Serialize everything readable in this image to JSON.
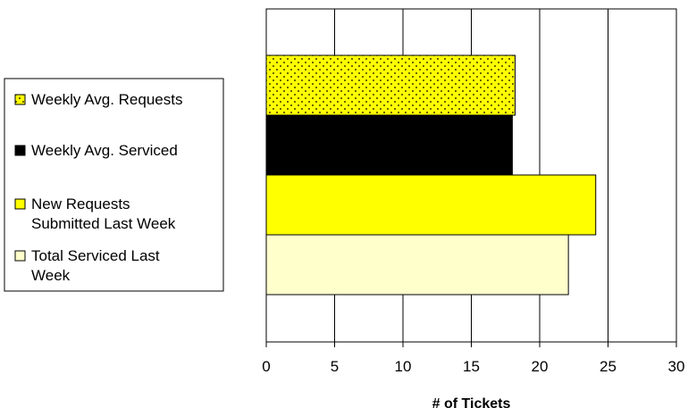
{
  "chart_data": {
    "type": "bar",
    "orientation": "horizontal",
    "xlabel": "# of Tickets",
    "ylabel": "",
    "xlim": [
      0,
      30
    ],
    "ticks": [
      0,
      5,
      10,
      15,
      20,
      25,
      30
    ],
    "grid": "vertical",
    "legend_position": "left",
    "series": [
      {
        "name": "Weekly Avg. Requests",
        "legend_lines": [
          "Weekly Avg. Requests"
        ],
        "value": 18.2,
        "fill": "#ffff00",
        "pattern": "dotted"
      },
      {
        "name": "Weekly Avg. Serviced",
        "legend_lines": [
          "Weekly Avg. Serviced"
        ],
        "value": 18.0,
        "fill": "#000000",
        "pattern": "solid"
      },
      {
        "name": "New Requests Submitted Last Week",
        "legend_lines": [
          "New Requests",
          "Submitted Last Week"
        ],
        "value": 24.1,
        "fill": "#ffff00",
        "pattern": "solid"
      },
      {
        "name": "Total Serviced Last Week",
        "legend_lines": [
          "Total Serviced Last",
          "Week"
        ],
        "value": 22.1,
        "fill": "#ffffcc",
        "pattern": "solid"
      }
    ]
  }
}
